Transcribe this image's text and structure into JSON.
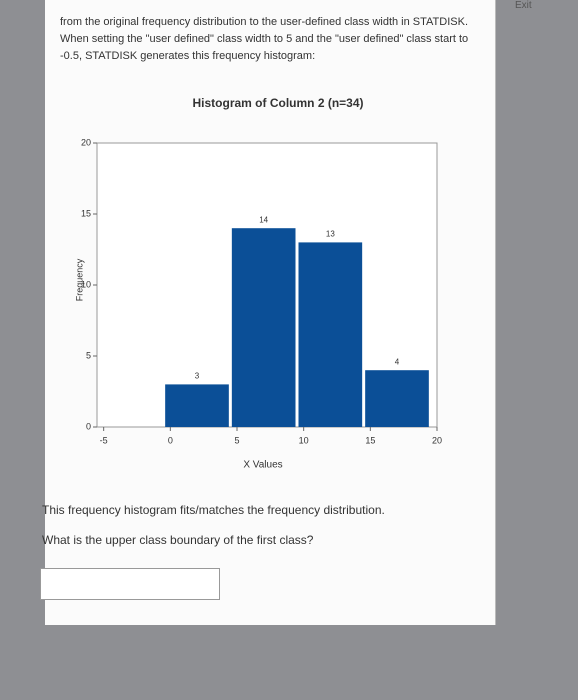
{
  "exit": "Exit",
  "intro": "from the original frequency distribution to the user-defined class width in STATDISK. When setting the \"user defined\" class width to 5 and the \"user defined\" class start to -0.5, STATDISK generates this frequency histogram:",
  "chart_data": {
    "type": "histogram",
    "title": "Histogram of Column 2 (n=34)",
    "x_label": "X Values",
    "y_label": "Frequency",
    "bins": [
      -0.5,
      4.5,
      9.5,
      14.5,
      19.5
    ],
    "counts": [
      3,
      14,
      13,
      4
    ],
    "color": "#0b4f97",
    "xlim": [
      -5.5,
      20
    ],
    "xticks": [
      -5,
      0,
      5,
      10,
      15,
      20
    ],
    "ylim": [
      0,
      20
    ],
    "yticks": [
      0,
      5,
      10,
      15,
      20
    ]
  },
  "statement": "This frequency histogram fits/matches the frequency distribution.",
  "question": "What is the upper class boundary of the first class?"
}
